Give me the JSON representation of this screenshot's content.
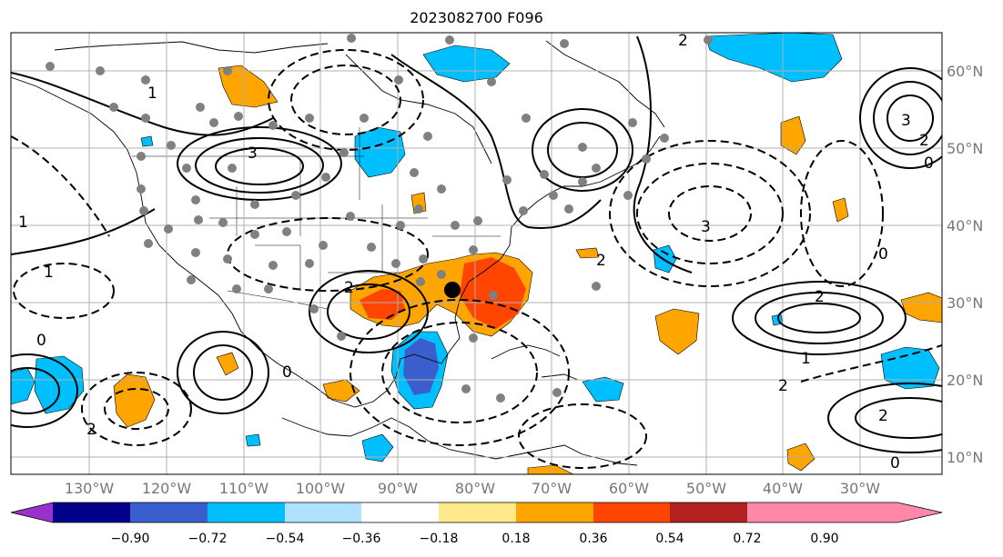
{
  "title": "2023082700 F096",
  "longitude_labels": [
    "130°W",
    "120°W",
    "110°W",
    "100°W",
    "90°W",
    "80°W",
    "70°W",
    "60°W",
    "50°W",
    "40°W",
    "30°W"
  ],
  "latitude_labels": [
    "60°N",
    "50°N",
    "40°N",
    "30°N",
    "20°N",
    "10°N"
  ],
  "colorbar": {
    "tick_labels": [
      "−0.90",
      "−0.72",
      "−0.54",
      "−0.36",
      "−0.18",
      "0.18",
      "0.36",
      "0.54",
      "0.72",
      "0.90"
    ],
    "colors": [
      "#9932cc",
      "#00008b",
      "#3a5fcd",
      "#00bfff",
      "#b0e2ff",
      "#ffffff",
      "#ffe98a",
      "#ffa500",
      "#ff4500",
      "#b22222",
      "#ff88aa"
    ]
  },
  "contour_labels": [
    {
      "text": "1",
      "kind": "solid"
    },
    {
      "text": "2",
      "kind": "solid"
    },
    {
      "text": "3",
      "kind": "solid"
    },
    {
      "text": "0",
      "kind": "zero"
    },
    {
      "text": "1",
      "kind": "dash"
    },
    {
      "text": "2",
      "kind": "dash"
    },
    {
      "text": "3",
      "kind": "dash"
    }
  ],
  "colors": {
    "shade_warm": "#ffa500",
    "shade_hot": "#ff4500",
    "shade_cool": "#00bfff",
    "shade_cold": "#3a5fcd",
    "grid": "#b0b0b0",
    "station": "#808080"
  }
}
